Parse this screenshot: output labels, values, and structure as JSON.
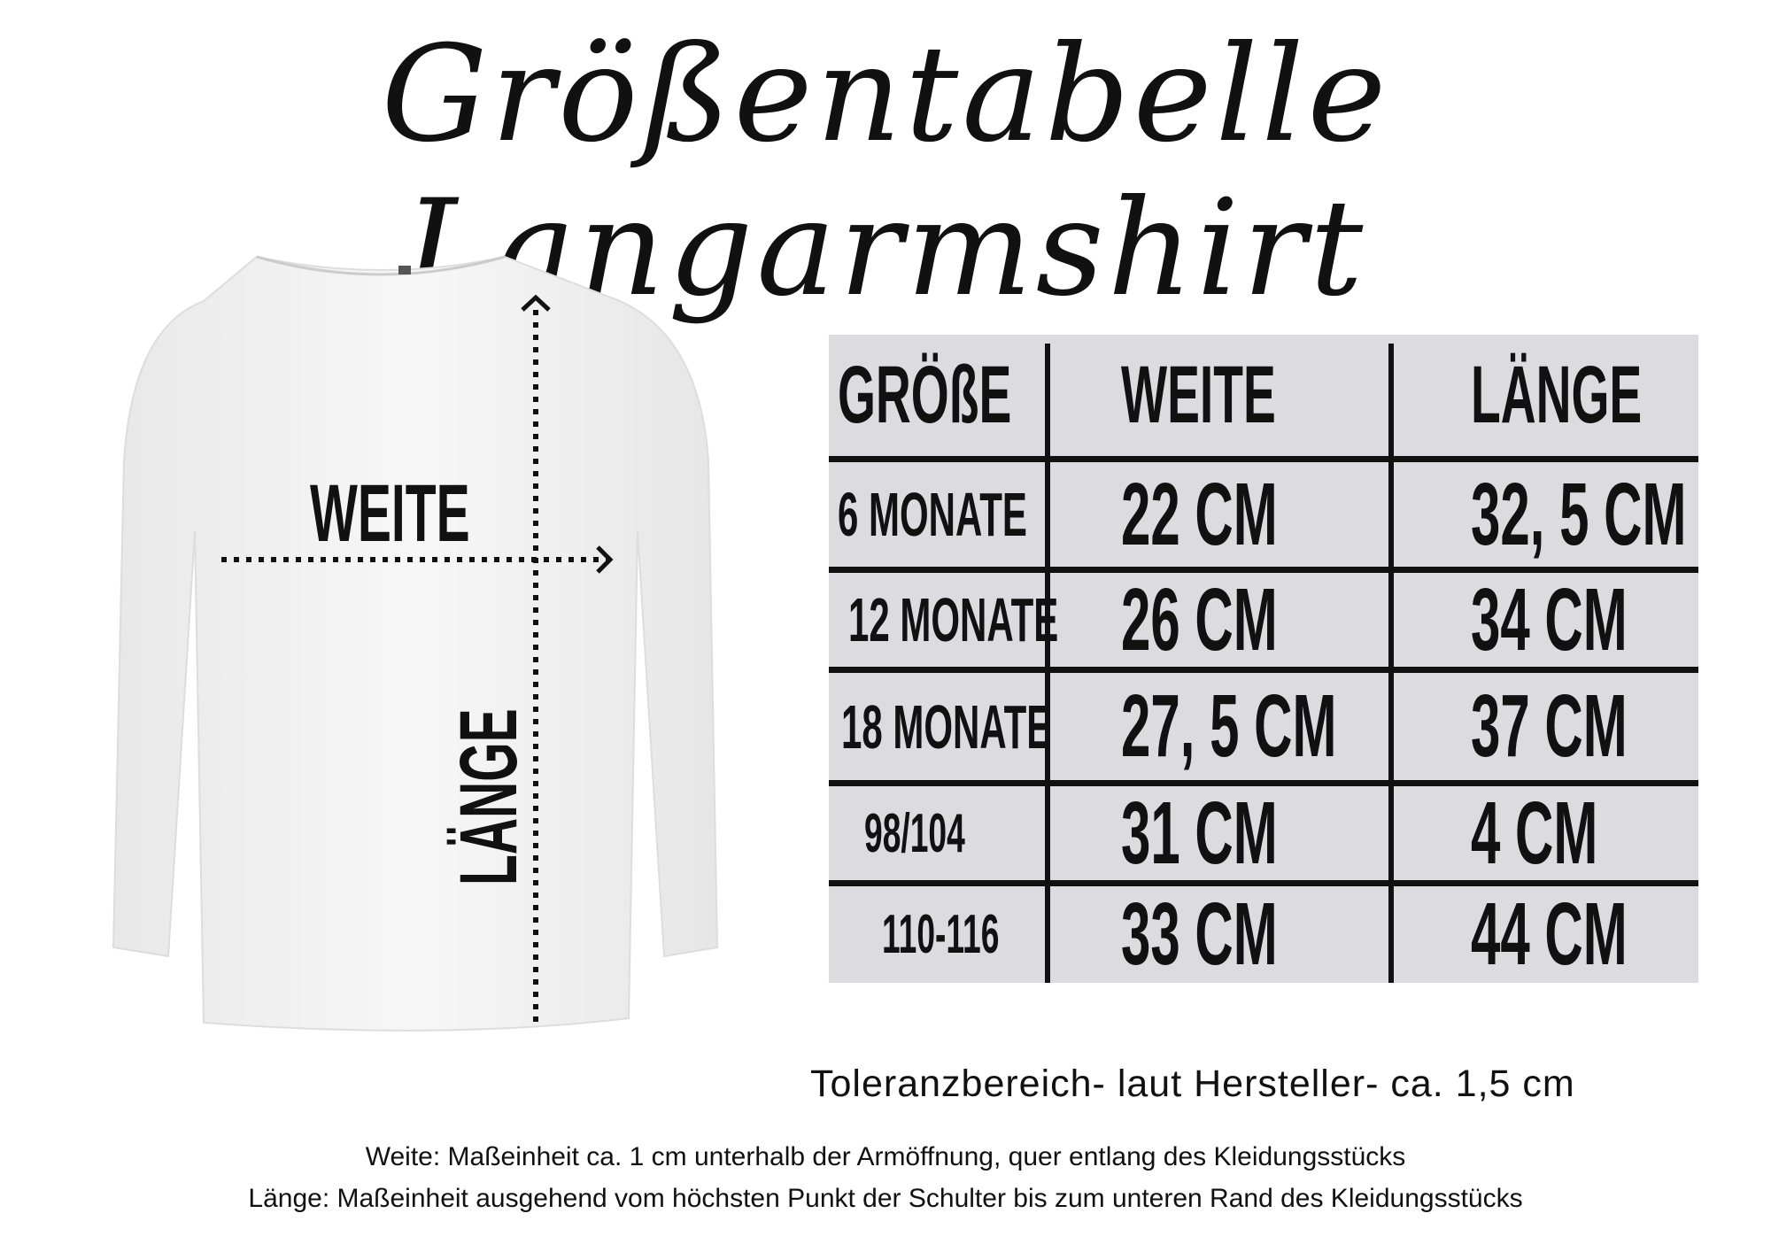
{
  "title": "Größentabelle Langarmshirt",
  "diagram": {
    "width_label": "WEITE",
    "length_label": "LÄNGE",
    "shirt_color": "#f4f4f4"
  },
  "table": {
    "background": "#dcdce0",
    "headers": [
      "GRÖßE",
      "WEITE",
      "LÄNGE"
    ],
    "rows": [
      [
        "6 MONATE",
        "22 CM",
        "32, 5 CM"
      ],
      [
        "12 MONATE",
        "26 CM",
        "34 CM"
      ],
      [
        "18 MONATE",
        "27, 5 CM",
        "37 CM"
      ],
      [
        "98/104",
        "31 CM",
        "4 CM"
      ],
      [
        "110-116",
        "33 CM",
        "44 CM"
      ]
    ]
  },
  "tolerance": "Toleranzbereich- laut Hersteller- ca. 1,5 cm",
  "notes": [
    "Weite: Maßeinheit ca. 1 cm unterhalb der Armöffnung, quer entlang des Kleidungsstücks",
    "Länge: Maßeinheit ausgehend vom höchsten Punkt der Schulter bis zum unteren Rand des Kleidungsstücks"
  ]
}
